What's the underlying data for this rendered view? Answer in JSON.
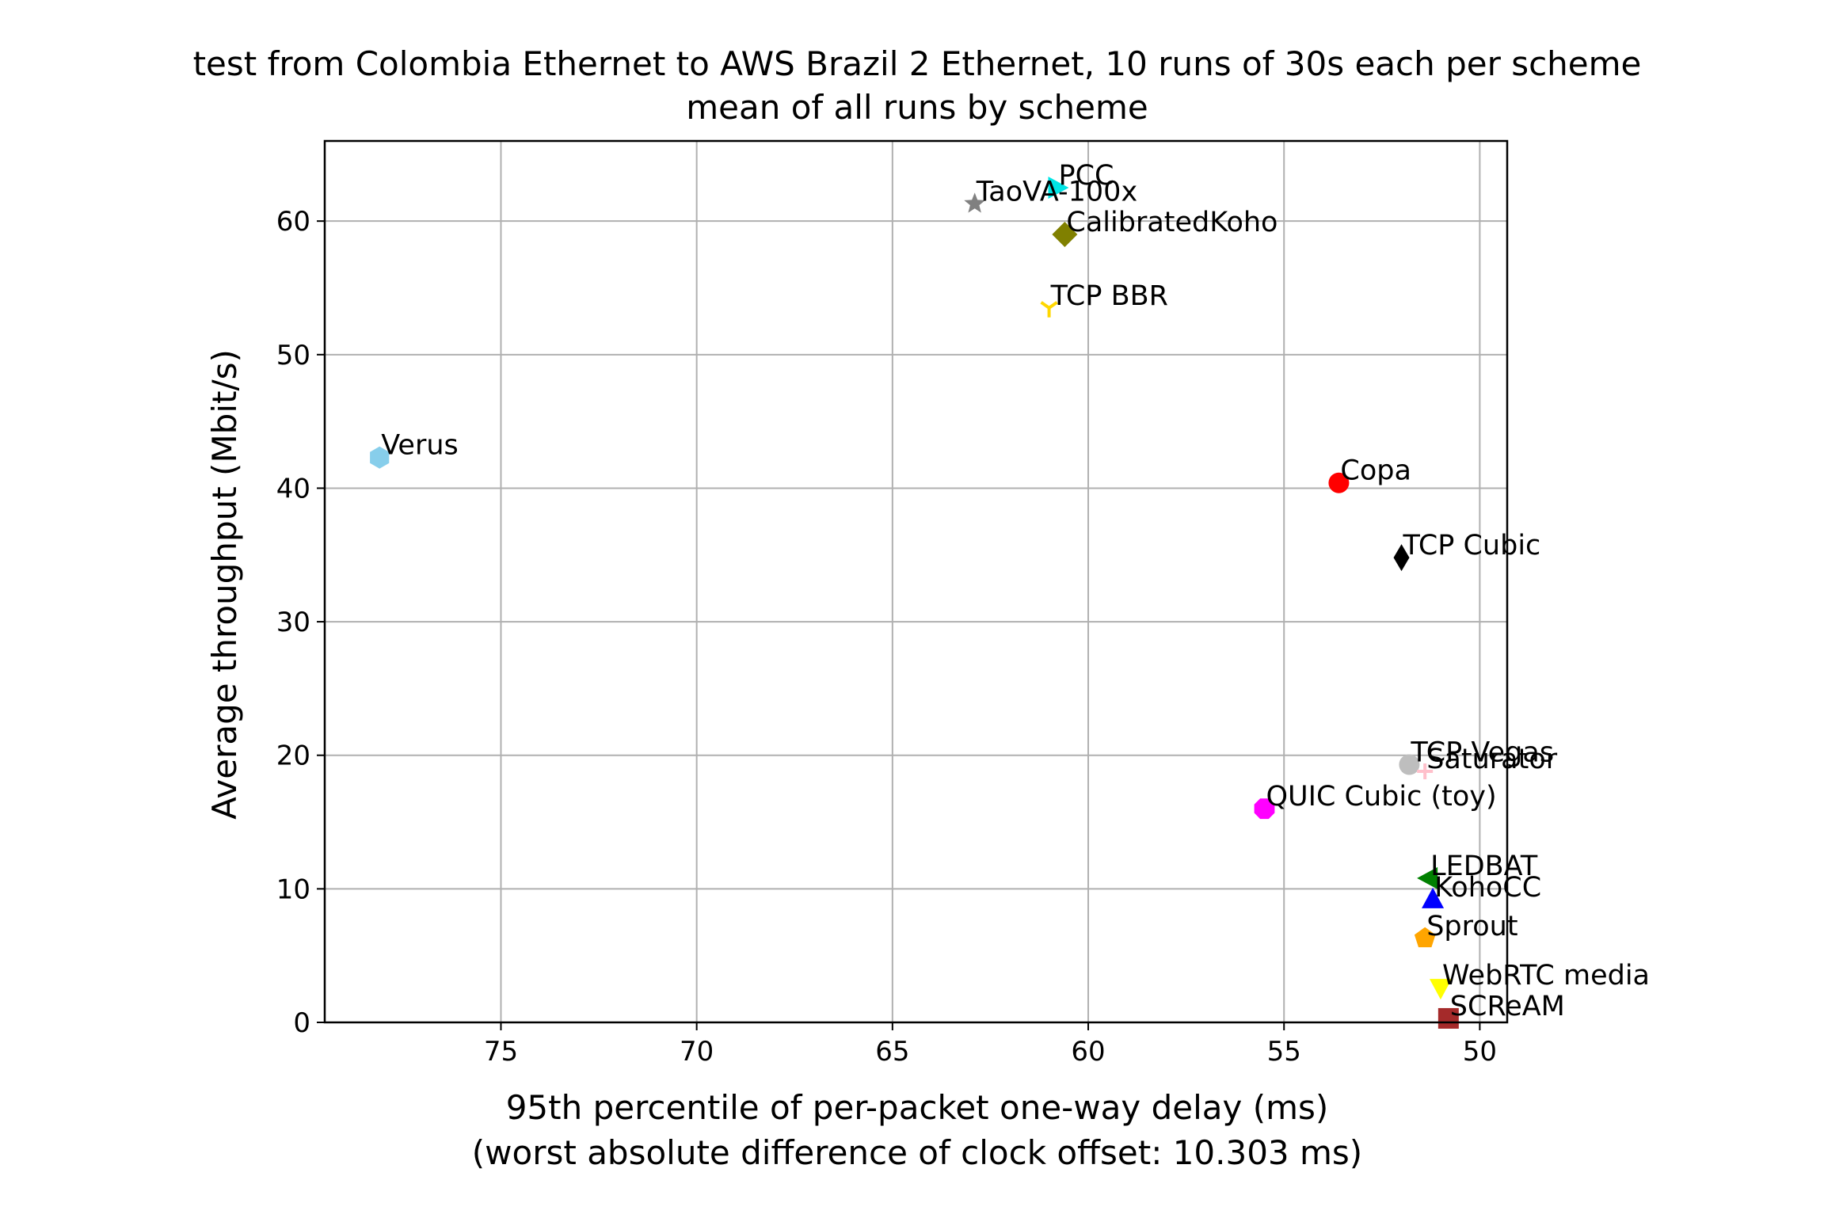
{
  "chart_data": {
    "type": "scatter",
    "title": "test from Colombia Ethernet to AWS Brazil 2 Ethernet, 10 runs of 30s each per scheme",
    "subtitle": "mean of all runs by scheme",
    "xlabel": "95th percentile of per-packet one-way delay (ms)",
    "xlabel2": "(worst absolute difference of clock offset: 10.303 ms)",
    "ylabel": "Average throughput (Mbit/s)",
    "xlim": [
      79.5,
      49.3
    ],
    "ylim": [
      0,
      66
    ],
    "x_inverted": true,
    "grid": true,
    "xticks": [
      75,
      70,
      65,
      60,
      55,
      50
    ],
    "yticks": [
      0,
      10,
      20,
      30,
      40,
      50,
      60
    ],
    "points": [
      {
        "label": "PCC",
        "x": 60.8,
        "y": 62.5,
        "marker": "triangle-right",
        "color": "#00e5e5"
      },
      {
        "label": "TaoVA-100x",
        "x": 62.9,
        "y": 61.3,
        "marker": "star",
        "color": "#808080"
      },
      {
        "label": "CalibratedKoho",
        "x": 60.6,
        "y": 59.0,
        "marker": "diamond",
        "color": "#808000"
      },
      {
        "label": "TCP BBR",
        "x": 61.0,
        "y": 53.5,
        "marker": "tri-down",
        "color": "#ffd700"
      },
      {
        "label": "Verus",
        "x": 78.1,
        "y": 42.3,
        "marker": "hexagon",
        "color": "#87ceeb"
      },
      {
        "label": "Copa",
        "x": 53.6,
        "y": 40.4,
        "marker": "circle",
        "color": "#ff0000"
      },
      {
        "label": "TCP Cubic",
        "x": 52.0,
        "y": 34.8,
        "marker": "thin-diamond",
        "color": "#000000"
      },
      {
        "label": "TCP Vegas",
        "x": 51.8,
        "y": 19.3,
        "marker": "circle",
        "color": "#bebebe"
      },
      {
        "label": "Saturator",
        "x": 51.4,
        "y": 18.8,
        "marker": "plus",
        "color": "#ffc0cb"
      },
      {
        "label": "QUIC Cubic (toy)",
        "x": 55.5,
        "y": 16.0,
        "marker": "octagon",
        "color": "#ff00ff"
      },
      {
        "label": "LEDBAT",
        "x": 51.3,
        "y": 10.8,
        "marker": "triangle-left",
        "color": "#008000"
      },
      {
        "label": "KohoCC",
        "x": 51.2,
        "y": 9.2,
        "marker": "triangle-up",
        "color": "#0000ff"
      },
      {
        "label": "Sprout",
        "x": 51.4,
        "y": 6.3,
        "marker": "pentagon",
        "color": "#ffa500"
      },
      {
        "label": "WebRTC media",
        "x": 51.0,
        "y": 2.6,
        "marker": "triangle-down",
        "color": "#ffff00"
      },
      {
        "label": "SCReAM",
        "x": 50.8,
        "y": 0.3,
        "marker": "square",
        "color": "#a52a2a"
      }
    ]
  }
}
